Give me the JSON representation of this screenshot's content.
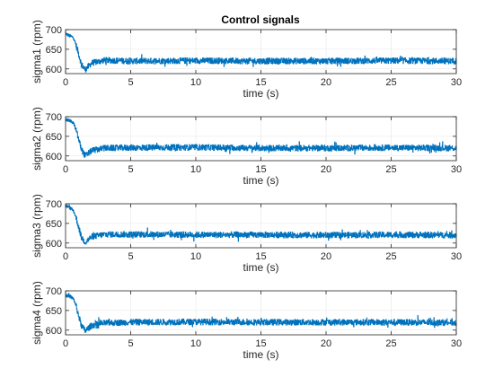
{
  "figure": {
    "title": "Control signals"
  },
  "colors": {
    "line": "#0072BD",
    "axis": "#262626",
    "grid": "#e6e6e6",
    "background": "#ffffff"
  },
  "chart_data": [
    {
      "type": "line",
      "title": "Control signals",
      "xlabel": "time (s)",
      "ylabel": "sigma1 (rpm)",
      "xlim": [
        0,
        30
      ],
      "ylim": [
        588,
        700
      ],
      "xticks": [
        0,
        5,
        10,
        15,
        20,
        25,
        30
      ],
      "yticks": [
        600,
        650,
        700
      ],
      "grid": true,
      "series": [
        {
          "x": [
            0,
            0.3,
            0.6,
            0.8,
            1.0,
            1.2,
            1.5,
            2,
            3,
            5,
            10,
            15,
            20,
            25,
            30
          ],
          "values": [
            690,
            684,
            680,
            660,
            638,
            612,
            598,
            615,
            622,
            620,
            621,
            620,
            620,
            621,
            620
          ],
          "noise_band": 15
        }
      ]
    },
    {
      "type": "line",
      "title": "",
      "xlabel": "time (s)",
      "ylabel": "sigma2 (rpm)",
      "xlim": [
        0,
        30
      ],
      "ylim": [
        588,
        700
      ],
      "xticks": [
        0,
        5,
        10,
        15,
        20,
        25,
        30
      ],
      "yticks": [
        600,
        650,
        700
      ],
      "grid": true,
      "series": [
        {
          "x": [
            0,
            0.3,
            0.6,
            0.8,
            1.0,
            1.2,
            1.5,
            2,
            3,
            5,
            10,
            15,
            20,
            25,
            30
          ],
          "values": [
            692,
            690,
            684,
            665,
            642,
            618,
            600,
            614,
            620,
            621,
            622,
            620,
            620,
            621,
            620
          ],
          "noise_band": 15
        }
      ]
    },
    {
      "type": "line",
      "title": "",
      "xlabel": "time (s)",
      "ylabel": "sigma3 (rpm)",
      "xlim": [
        0,
        30
      ],
      "ylim": [
        588,
        700
      ],
      "xticks": [
        0,
        5,
        10,
        15,
        20,
        25,
        30
      ],
      "yticks": [
        600,
        650,
        700
      ],
      "grid": true,
      "series": [
        {
          "x": [
            0,
            0.3,
            0.6,
            0.8,
            1.0,
            1.2,
            1.5,
            2,
            3,
            5,
            10,
            15,
            20,
            25,
            30
          ],
          "values": [
            695,
            690,
            682,
            665,
            640,
            615,
            602,
            616,
            622,
            622,
            621,
            621,
            620,
            621,
            620
          ],
          "noise_band": 15
        }
      ]
    },
    {
      "type": "line",
      "title": "",
      "xlabel": "time (s)",
      "ylabel": "sigma4 (rpm)",
      "xlim": [
        0,
        30
      ],
      "ylim": [
        588,
        700
      ],
      "xticks": [
        0,
        5,
        10,
        15,
        20,
        25,
        30
      ],
      "yticks": [
        600,
        650,
        700
      ],
      "grid": true,
      "series": [
        {
          "x": [
            0,
            0.3,
            0.6,
            0.8,
            1.0,
            1.2,
            1.5,
            2,
            3,
            5,
            10,
            15,
            20,
            25,
            30
          ],
          "values": [
            688,
            686,
            680,
            662,
            636,
            612,
            598,
            612,
            618,
            620,
            621,
            620,
            620,
            620,
            619
          ],
          "noise_band": 15
        }
      ]
    }
  ]
}
